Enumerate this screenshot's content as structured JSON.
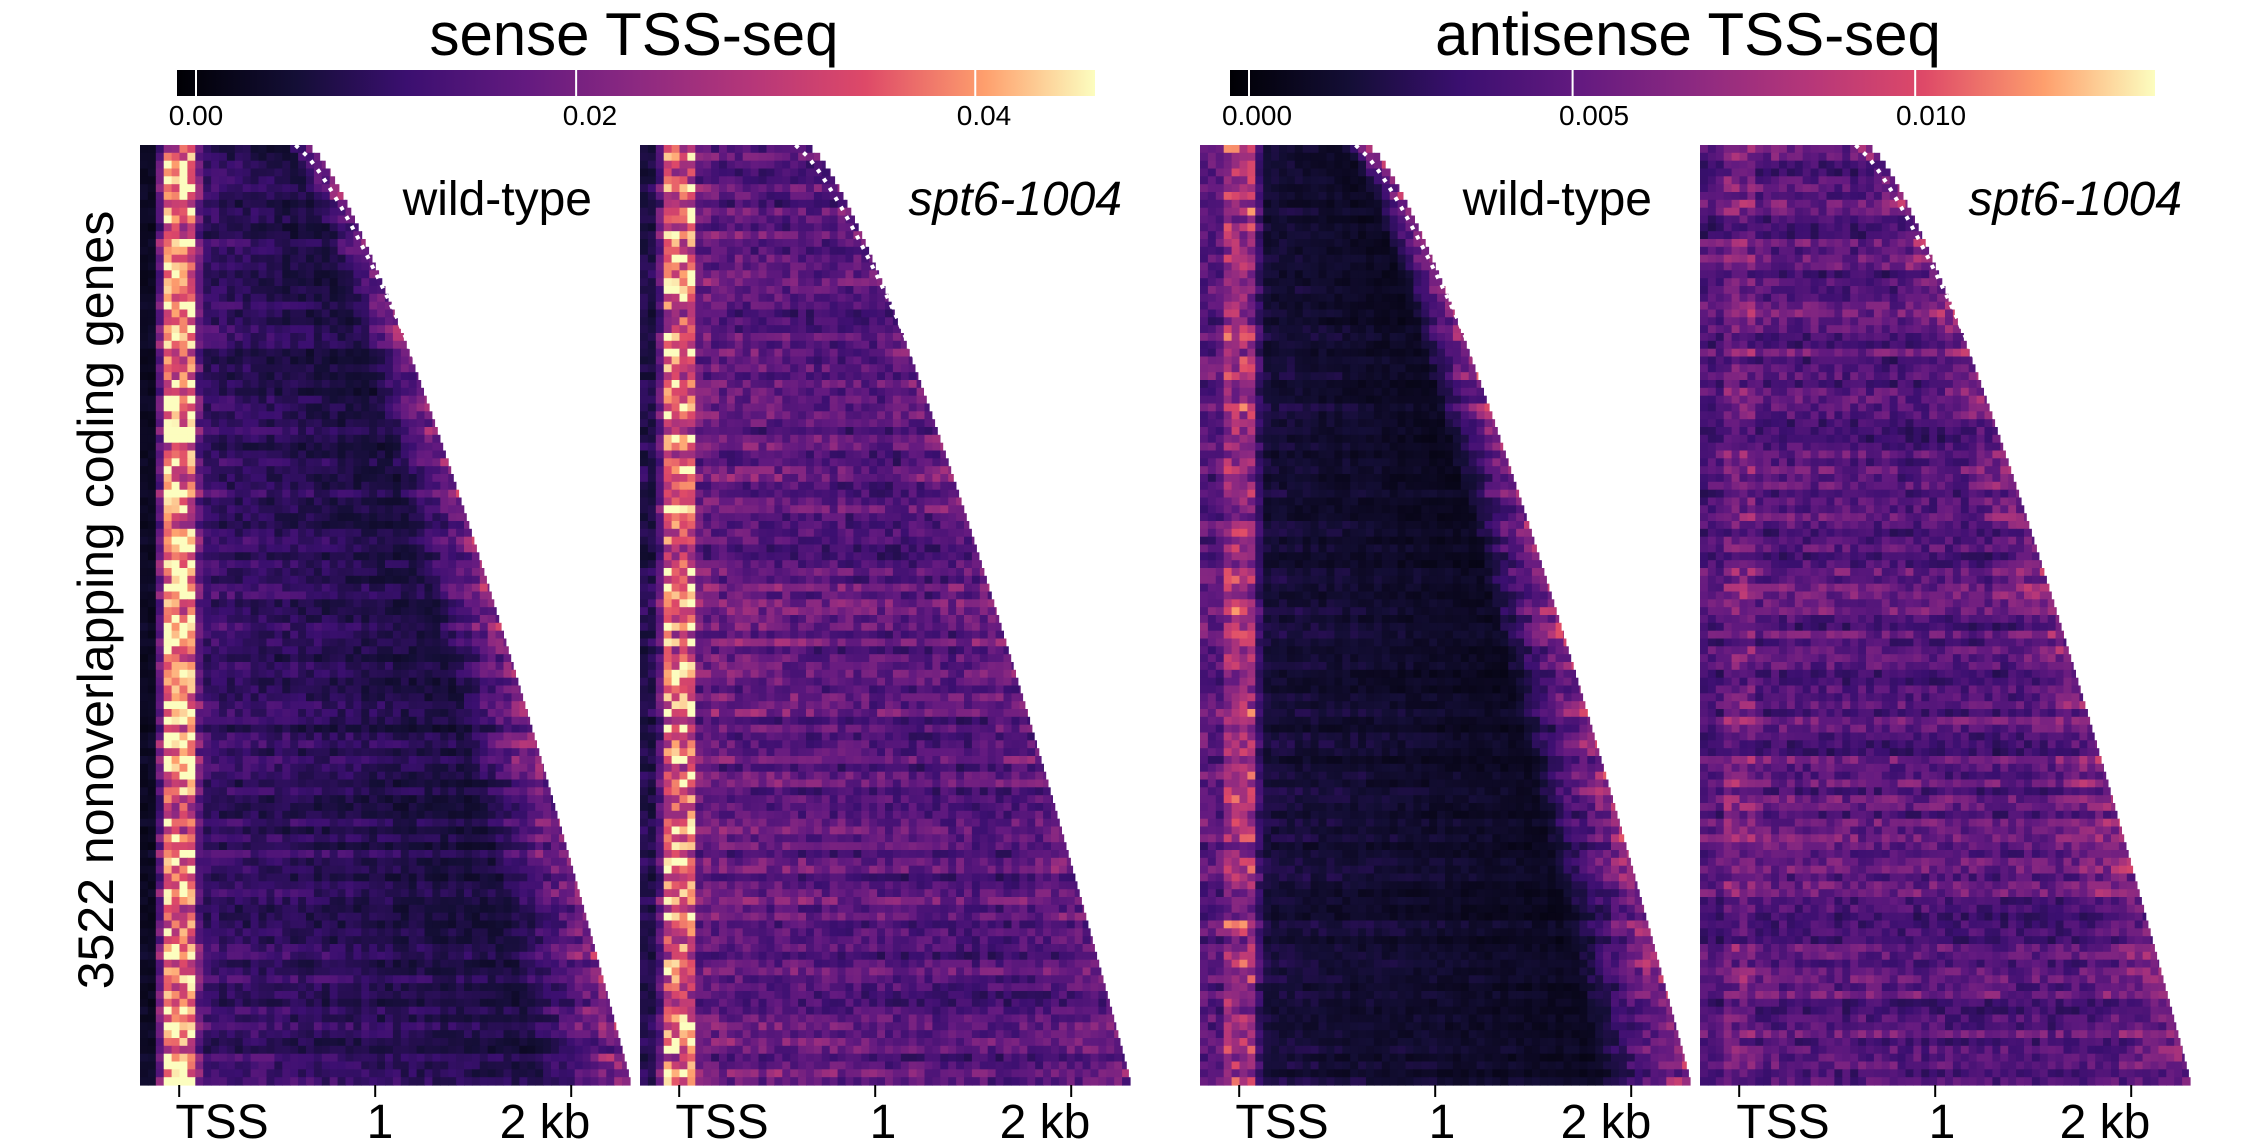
{
  "figure": {
    "ylabel": "3522 nonoverlapping coding genes"
  },
  "chart_data": [
    {
      "type": "heatmap",
      "title": "sense TSS-seq",
      "colormap": "magma",
      "colorbar": {
        "ticks": [
          "0.00",
          "0.02",
          "0.04"
        ],
        "tick_values": [
          0,
          0.02,
          0.04
        ],
        "range": [
          0,
          0.046
        ]
      },
      "xticks": [
        "TSS",
        "1",
        "2 kb"
      ],
      "tick_positions_kb": [
        0,
        1,
        2
      ],
      "xlim_kb": [
        -0.2,
        2.3
      ],
      "n_genes": 3522,
      "annotation": "dotted white line marks gene ends (sorted by gene length)",
      "panels": [
        {
          "label": "wild-type",
          "italic": false,
          "tss_intensity": 0.88,
          "body_intensity": 0.26,
          "body_decay": 0.55,
          "upstream_intensity": 0.08,
          "edge_glow": 0.35
        },
        {
          "label": "spt6-1004",
          "italic": true,
          "tss_intensity": 0.78,
          "body_intensity": 0.4,
          "body_decay": 0.25,
          "upstream_intensity": 0.18,
          "edge_glow": 0.1
        }
      ]
    },
    {
      "type": "heatmap",
      "title": "antisense TSS-seq",
      "colormap": "magma",
      "colorbar": {
        "ticks": [
          "0.000",
          "0.005",
          "0.010"
        ],
        "tick_values": [
          0,
          0.005,
          0.01
        ],
        "range": [
          0,
          0.0135
        ]
      },
      "xticks": [
        "TSS",
        "1",
        "2 kb"
      ],
      "tick_positions_kb": [
        0,
        1,
        2
      ],
      "xlim_kb": [
        -0.2,
        2.3
      ],
      "n_genes": 3522,
      "annotation": "dotted white line marks gene ends (sorted by gene length)",
      "panels": [
        {
          "label": "wild-type",
          "italic": false,
          "tss_intensity": 0.55,
          "body_intensity": 0.14,
          "body_decay": 0.6,
          "upstream_intensity": 0.35,
          "edge_glow": 0.45
        },
        {
          "label": "spt6-1004",
          "italic": true,
          "tss_intensity": 0.42,
          "body_intensity": 0.35,
          "body_decay": 0.1,
          "upstream_intensity": 0.32,
          "edge_glow": 0.15
        }
      ]
    }
  ]
}
